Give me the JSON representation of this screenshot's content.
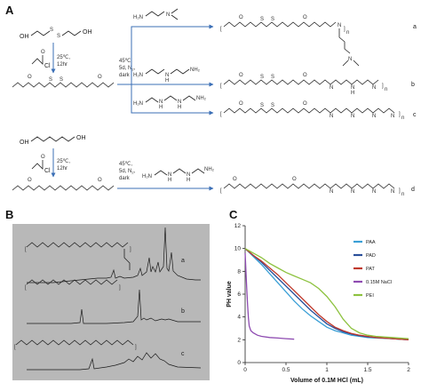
{
  "panels": {
    "a": {
      "letter": "A",
      "reactants": {
        "row1_diol_substituent": "OH",
        "row2_diol_substituent": "OH",
        "acryloyl_substituent": "Cl",
        "step1_condition_temp": "25℃,",
        "step1_condition_time": "12hr",
        "step2_condition_temp": "25℃,",
        "step2_condition_time": "12hr",
        "polymerization_cond_1": "45℃,",
        "polymerization_cond_2": "5d, N",
        "polymerization_cond_2_sub": "2",
        "polymerization_cond_2_end": ",",
        "polymerization_cond_3": "dark",
        "polymerization2_cond_1": "45℃,",
        "polymerization2_cond_2": "5d, N",
        "polymerization2_cond_2_sub": "2",
        "polymerization2_cond_2_end": ",",
        "polymerization2_cond_3": "dark"
      },
      "amines": {
        "a_h2n": "H₂N",
        "a_n": "N",
        "b_h2n": "H₂N",
        "b_n": "N",
        "b_h": "H",
        "b_nh2": "NH₂",
        "c_h2n": "H₂N",
        "c_nh_1": "N",
        "c_h_1": "H",
        "c_nh_2": "N",
        "c_h_2": "H",
        "c_nh2": "NH₂",
        "d_h2n": "H₂N",
        "d_nh_1": "N",
        "d_h_1": "H",
        "d_nh_2": "N",
        "d_h_2": "H",
        "d_nh2": "NH₂"
      },
      "products": {
        "a_label": "a",
        "b_label": "b",
        "c_label": "c",
        "d_label": "d",
        "n": "n",
        "s_atom": "S",
        "o_atom": "O",
        "n_atom": "N",
        "h_atom": "H"
      }
    },
    "b": {
      "letter": "B",
      "spectrum_labels": [
        "a",
        "b",
        "c"
      ]
    },
    "c": {
      "letter": "C"
    }
  },
  "chart_data": {
    "type": "line",
    "xlabel": "Volume of 0.1M HCl (mL)",
    "ylabel": "PH value",
    "xlim": [
      0,
      2
    ],
    "ylim": [
      0,
      12
    ],
    "xticks": [
      "0",
      "0.5",
      "1",
      "1.5",
      "2"
    ],
    "yticks": [
      "0",
      "2",
      "4",
      "6",
      "8",
      "10",
      "12"
    ],
    "legend_position": "top-right",
    "series": [
      {
        "name": "PAA",
        "color": "#3a9fd6",
        "x": [
          0,
          0.1,
          0.2,
          0.3,
          0.4,
          0.5,
          0.6,
          0.7,
          0.8,
          0.9,
          1.0,
          1.1,
          1.2,
          1.3,
          1.4,
          1.5,
          1.6,
          1.8,
          2.0
        ],
        "y": [
          10.0,
          9.3,
          8.6,
          7.8,
          7.0,
          6.2,
          5.4,
          4.7,
          4.1,
          3.6,
          3.1,
          2.8,
          2.6,
          2.4,
          2.3,
          2.2,
          2.15,
          2.1,
          2.0
        ]
      },
      {
        "name": "PAD",
        "color": "#2a4f9a",
        "x": [
          0,
          0.1,
          0.2,
          0.3,
          0.4,
          0.5,
          0.6,
          0.7,
          0.8,
          0.9,
          1.0,
          1.1,
          1.2,
          1.3,
          1.4,
          1.5,
          1.6,
          1.8,
          2.0
        ],
        "y": [
          10.0,
          9.4,
          8.8,
          8.1,
          7.4,
          6.7,
          6.0,
          5.3,
          4.6,
          4.0,
          3.4,
          3.0,
          2.7,
          2.5,
          2.35,
          2.25,
          2.2,
          2.1,
          2.0
        ]
      },
      {
        "name": "PAT",
        "color": "#c0392b",
        "x": [
          0,
          0.1,
          0.2,
          0.3,
          0.4,
          0.5,
          0.6,
          0.7,
          0.8,
          0.9,
          1.0,
          1.1,
          1.2,
          1.3,
          1.4,
          1.5,
          1.6,
          1.8,
          2.0
        ],
        "y": [
          10.0,
          9.4,
          8.9,
          8.3,
          7.7,
          7.0,
          6.3,
          5.6,
          4.9,
          4.2,
          3.6,
          3.1,
          2.8,
          2.55,
          2.4,
          2.3,
          2.2,
          2.1,
          2.0
        ]
      },
      {
        "name": "0.15M NaCl",
        "color": "#8e4bb1",
        "x": [
          0,
          0.01,
          0.02,
          0.03,
          0.04,
          0.05,
          0.07,
          0.1,
          0.15,
          0.2,
          0.3,
          0.4,
          0.5,
          0.6
        ],
        "y": [
          9.6,
          8.0,
          6.5,
          5.0,
          3.9,
          3.2,
          2.8,
          2.6,
          2.4,
          2.3,
          2.2,
          2.15,
          2.1,
          2.05
        ]
      },
      {
        "name": "PEI",
        "color": "#8dc23f",
        "x": [
          0,
          0.1,
          0.2,
          0.3,
          0.4,
          0.5,
          0.6,
          0.7,
          0.8,
          0.9,
          1.0,
          1.1,
          1.2,
          1.3,
          1.4,
          1.5,
          1.6,
          1.8,
          2.0
        ],
        "y": [
          10.0,
          9.6,
          9.2,
          8.7,
          8.3,
          7.9,
          7.6,
          7.3,
          7.0,
          6.5,
          5.8,
          4.9,
          3.8,
          3.0,
          2.6,
          2.4,
          2.3,
          2.2,
          2.1
        ]
      }
    ]
  }
}
